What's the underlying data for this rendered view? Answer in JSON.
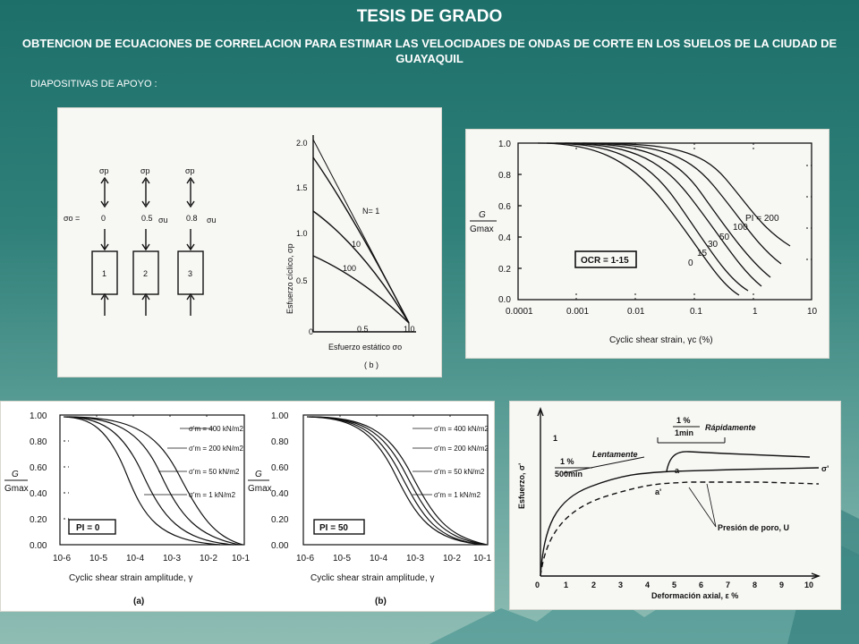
{
  "header": {
    "title": "TESIS DE GRADO",
    "subtitle": "OBTENCION DE ECUACIONES DE CORRELACION PARA ESTIMAR LAS VELOCIDADES DE ONDAS DE CORTE EN LOS SUELOS DE LA CIUDAD DE GUAYAQUIL",
    "section_label": "DIAPOSITIVAS DE APOYO :"
  },
  "fig1": {
    "sigma_p": "σp",
    "sigma_o_label": "σo =",
    "samples": [
      {
        "id": "1",
        "value": "0"
      },
      {
        "id": "2",
        "value": "0.5"
      },
      {
        "id": "3",
        "value": "0.8"
      }
    ],
    "sigma_u": "σu",
    "ylabel": "Esfuerzo cíclico, σp",
    "xlabel": "Esfuerzo estático σo",
    "caption": "( b )",
    "yticks": [
      "2.0",
      "1.5",
      "1.0",
      "0.5",
      "0"
    ],
    "xticks": [
      "0.5",
      "1.0"
    ],
    "curve_labels": [
      "N= 1",
      "10",
      "100"
    ]
  },
  "fig2": {
    "ylabel_num": "G",
    "ylabel_den": "Gmax",
    "yticks": [
      "1.0",
      "0.8",
      "0.6",
      "0.4",
      "0.2",
      "0.0"
    ],
    "xticks": [
      "0.0001",
      "0.001",
      "0.01",
      "0.1",
      "1",
      "10"
    ],
    "xlabel": "Cyclic shear strain, γc (%)",
    "box_label": "OCR = 1-15",
    "curve_labels": [
      "PI = 200",
      "100",
      "50",
      "30",
      "15",
      "0"
    ]
  },
  "fig3a": {
    "yticks": [
      "1.00",
      "0.80",
      "0.60",
      "0.40",
      "0.20",
      "0.00"
    ],
    "xticks": [
      "10-6",
      "10-5",
      "10-4",
      "10-3",
      "10-2",
      "10-1"
    ],
    "xlabel": "Cyclic shear strain amplitude, γ",
    "caption": "(a)",
    "box_label": "PI = 0",
    "ylabel_num": "G",
    "ylabel_den": "Gmax",
    "legend": [
      "σ'm = 400 kN/m2",
      "σ'm = 200 kN/m2",
      "σ'm = 50 kN/m2",
      "σ'm = 1 kN/m2"
    ]
  },
  "fig3b": {
    "yticks": [
      "1.00",
      "0.80",
      "0.60",
      "0.40",
      "0.20",
      "0.00"
    ],
    "xticks": [
      "10-6",
      "10-5",
      "10-4",
      "10-3",
      "10-2",
      "10-1"
    ],
    "xlabel": "Cyclic shear strain amplitude, γ",
    "caption": "(b)",
    "box_label": "PI = 50",
    "ylabel_num": "G",
    "ylabel_den": "Gmax",
    "legend": [
      "σ'm = 400 kN/m2",
      "σ'm = 200 kN/m2",
      "σ'm = 50 kN/m2",
      "σ'm = 1 kN/m2"
    ]
  },
  "fig4": {
    "ylabel": "Esfuerzo, σ'",
    "xlabel": "Deformación axial, ε %",
    "xticks": [
      "0",
      "1",
      "2",
      "3",
      "4",
      "5",
      "6",
      "7",
      "8",
      "9",
      "10"
    ],
    "fast_rate": "1 %",
    "fast_den": "1min",
    "fast_label": "Rápidamente",
    "slow_rate": "1 %",
    "slow_den": "500min",
    "slow_label": "Lentamente",
    "point_a": "a",
    "point_a_prime": "a'",
    "sigma_prime": "σ'",
    "pore_label": "Presión de poro, U",
    "left_mark": "1"
  }
}
